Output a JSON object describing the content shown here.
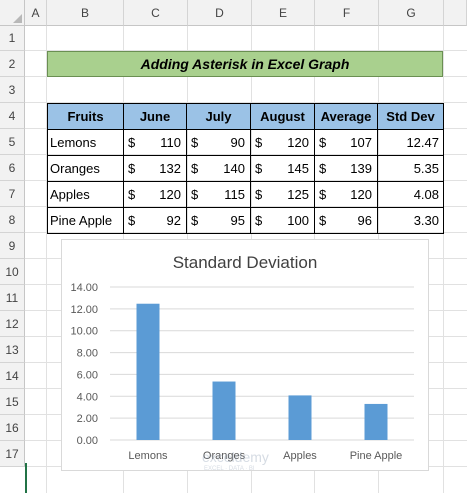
{
  "columns": [
    "A",
    "B",
    "C",
    "D",
    "E",
    "F",
    "G"
  ],
  "rows": [
    "1",
    "2",
    "3",
    "4",
    "5",
    "6",
    "7",
    "8",
    "9",
    "10",
    "11",
    "12",
    "13",
    "14",
    "15",
    "16",
    "17"
  ],
  "title": "Adding Asterisk in Excel Graph",
  "table": {
    "headers": [
      "Fruits",
      "June",
      "July",
      "August",
      "Average",
      "Std Dev"
    ],
    "currency": "$",
    "rows": [
      {
        "fruit": "Lemons",
        "june": "110",
        "july": "90",
        "august": "120",
        "average": "107",
        "std": "12.47"
      },
      {
        "fruit": "Oranges",
        "june": "132",
        "july": "140",
        "august": "145",
        "average": "139",
        "std": "5.35"
      },
      {
        "fruit": "Apples",
        "june": "120",
        "july": "115",
        "august": "125",
        "average": "120",
        "std": "4.08"
      },
      {
        "fruit": "Pine Apple",
        "june": "92",
        "july": "95",
        "august": "100",
        "average": "96",
        "std": "3.30"
      }
    ]
  },
  "chart_data": {
    "type": "bar",
    "title": "Standard Deviation",
    "categories": [
      "Lemons",
      "Oranges",
      "Apples",
      "Pine Apple"
    ],
    "values": [
      12.47,
      5.35,
      4.08,
      3.3
    ],
    "ylim": [
      0,
      14
    ],
    "yticks": [
      "0.00",
      "2.00",
      "4.00",
      "6.00",
      "8.00",
      "10.00",
      "12.00",
      "14.00"
    ],
    "bar_color": "#5b9bd5",
    "grid": true,
    "legend": "none"
  },
  "watermark": {
    "name": "exceldemy",
    "tagline": "EXCEL · DATA · BI"
  }
}
